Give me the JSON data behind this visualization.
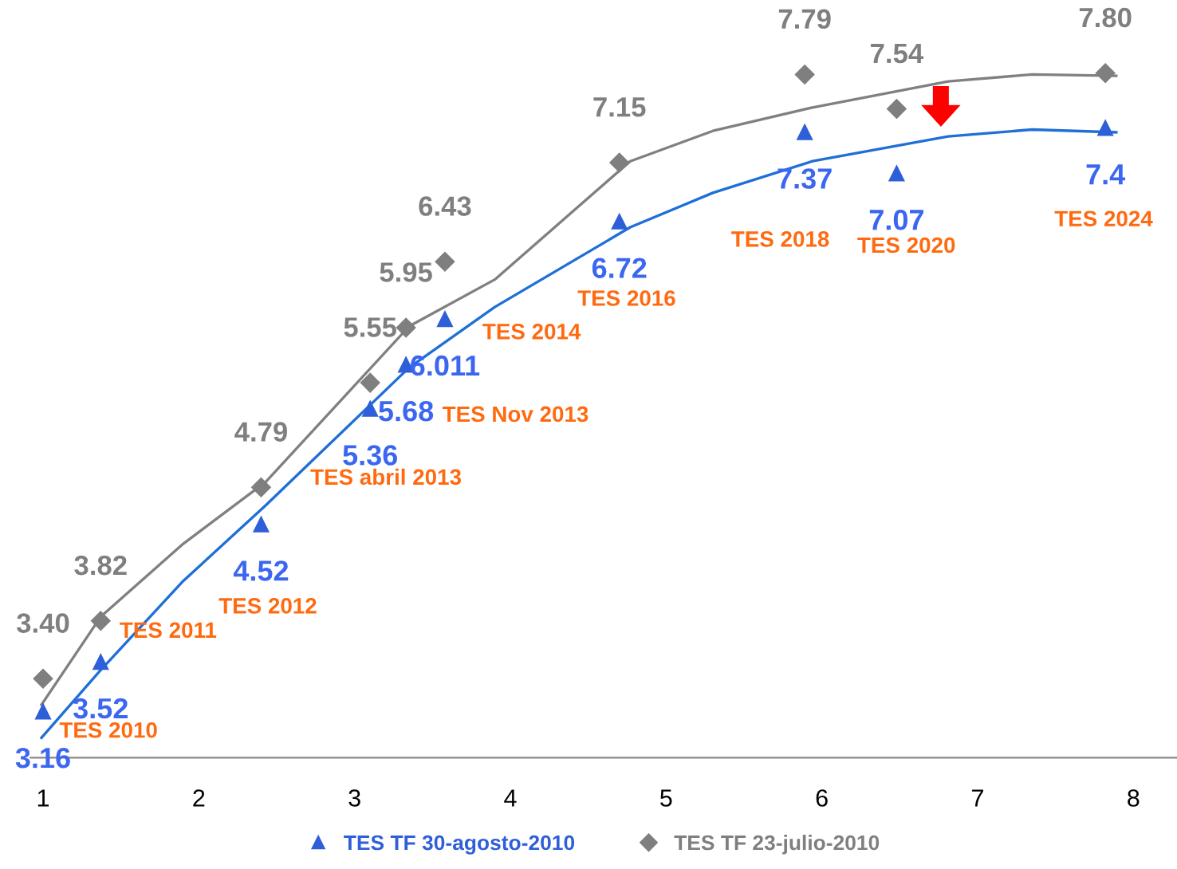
{
  "chart_data": {
    "type": "scatter",
    "xlim": [
      0.92,
      8.28
    ],
    "xticks": [
      1,
      2,
      3,
      4,
      5,
      6,
      7,
      8
    ],
    "tick_labels": "x",
    "grid": false,
    "legend": "bottom",
    "series": [
      {
        "name": "TES TF 30-agosto-2010",
        "color": "#2f5fd8",
        "marker": "triangle",
        "x": [
          1.0,
          1.37,
          2.4,
          3.1,
          3.33,
          3.58,
          4.7,
          5.89,
          6.48,
          7.82
        ],
        "values": [
          3.16,
          3.52,
          4.52,
          5.36,
          5.68,
          6.011,
          6.72,
          7.37,
          7.07,
          7.4
        ],
        "value_labels": [
          "3.16",
          "3.52",
          "4.52",
          "5.36",
          "5.68",
          "6.011",
          "6.72",
          "7.37",
          "7.07",
          "7.4"
        ]
      },
      {
        "name": "TES TF 23-julio-2010",
        "color": "#7f7f7f",
        "marker": "diamond",
        "x": [
          1.0,
          1.37,
          2.4,
          3.1,
          3.33,
          3.58,
          4.7,
          5.89,
          6.48,
          7.82
        ],
        "values": [
          3.4,
          3.82,
          4.79,
          5.55,
          5.95,
          6.43,
          7.15,
          7.79,
          7.54,
          7.8
        ],
        "value_labels": [
          "3.40",
          "3.82",
          "4.79",
          "5.55",
          "5.95",
          "6.43",
          "7.15",
          "7.79",
          "7.54",
          "7.80"
        ]
      },
      {
        "type": "line",
        "color": "#1f6fd6",
        "marker": "none",
        "x": [
          0.99,
          1.36,
          1.9,
          2.43,
          3.35,
          3.9,
          4.77,
          5.3,
          5.94,
          6.81,
          7.35,
          7.89
        ],
        "values": [
          2.97,
          3.45,
          4.11,
          4.66,
          5.66,
          6.1,
          6.68,
          6.93,
          7.16,
          7.34,
          7.39,
          7.37
        ]
      },
      {
        "type": "line",
        "color": "#808080",
        "marker": "none",
        "x": [
          0.99,
          1.37,
          1.9,
          2.43,
          3.35,
          3.9,
          4.77,
          5.3,
          5.94,
          6.81,
          7.35,
          7.89
        ],
        "values": [
          3.21,
          3.85,
          4.38,
          4.83,
          5.96,
          6.3,
          7.16,
          7.38,
          7.55,
          7.74,
          7.79,
          7.78
        ]
      }
    ],
    "annotations": [
      "TES 2010",
      "TES 2011",
      "TES 2012",
      "TES abril 2013",
      "TES Nov 2013",
      "TES 2014",
      "TES 2016",
      "TES 2018",
      "TES 2020",
      "TES 2024"
    ]
  }
}
